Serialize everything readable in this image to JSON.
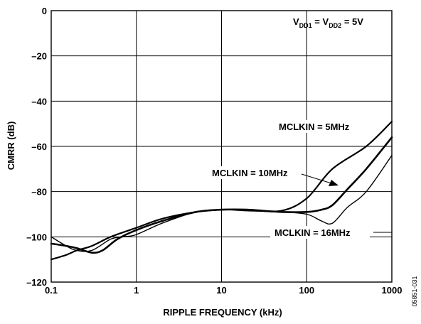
{
  "chart_data": {
    "type": "line",
    "xlabel": "RIPPLE FREQUENCY (kHz)",
    "ylabel": "CMRR (dB)",
    "x_scale": "log",
    "xlim": [
      0.1,
      1000
    ],
    "ylim": [
      -120,
      0
    ],
    "x_ticks": [
      "0.1",
      "1",
      "10",
      "100",
      "1000"
    ],
    "y_ticks": [
      "0",
      "–20",
      "–40",
      "–60",
      "–80",
      "–100",
      "–120"
    ],
    "grid": true,
    "condition": {
      "prefix": "V",
      "sub1": "DD1",
      "mid": " = V",
      "sub2": "DD2",
      "suffix": " = 5V"
    },
    "figure_id": "05851-031",
    "series": [
      {
        "name": "MCLKIN = 5MHz",
        "x": [
          0.1,
          0.15,
          0.2,
          0.3,
          0.5,
          1,
          2,
          5,
          10,
          20,
          50,
          100,
          200,
          500,
          1000
        ],
        "y": [
          -110,
          -108,
          -106,
          -104,
          -100,
          -96,
          -92,
          -89,
          -88,
          -88,
          -88.5,
          -83,
          -70,
          -60,
          -49
        ]
      },
      {
        "name": "MCLKIN = 10MHz",
        "x": [
          0.1,
          0.15,
          0.2,
          0.3,
          0.4,
          0.6,
          1,
          2,
          5,
          10,
          20,
          50,
          100,
          150,
          200,
          300,
          500,
          1000
        ],
        "y": [
          -103,
          -104,
          -105,
          -107,
          -106,
          -101,
          -97,
          -93,
          -89,
          -88,
          -88,
          -89,
          -89,
          -88,
          -86,
          -79,
          -70,
          -56
        ]
      },
      {
        "name": "MCLKIN = 16MHz",
        "x": [
          0.1,
          0.15,
          0.2,
          0.3,
          0.5,
          0.7,
          1,
          2,
          5,
          10,
          20,
          50,
          100,
          150,
          200,
          300,
          500,
          1000
        ],
        "y": [
          -100,
          -104,
          -106,
          -106,
          -101,
          -100,
          -99,
          -94,
          -89,
          -88,
          -88.5,
          -89,
          -90,
          -93,
          -94,
          -87,
          -80,
          -64
        ]
      }
    ],
    "annotations": [
      {
        "text": "MCLKIN = 5MHz",
        "series": 0
      },
      {
        "text": "MCLKIN = 10MHz",
        "series": 1
      },
      {
        "text": "MCLKIN = 16MHz",
        "series": 2
      }
    ]
  }
}
